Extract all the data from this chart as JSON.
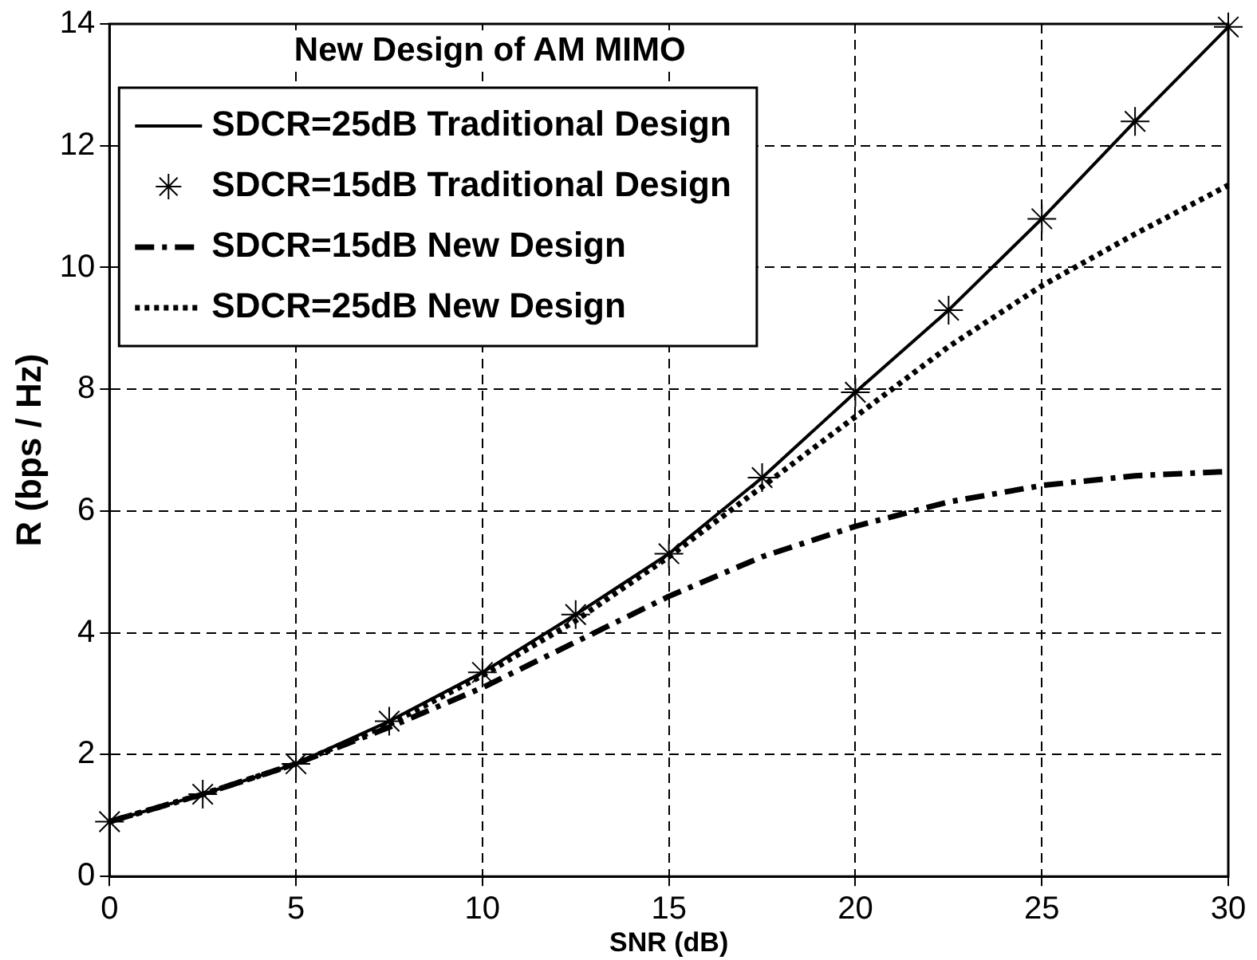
{
  "chart_data": {
    "type": "line",
    "title": "New Design of AM MIMO",
    "xlabel": "SNR (dB)",
    "ylabel": "R (bps / Hz)",
    "x": [
      0,
      2.5,
      5,
      7.5,
      10,
      12.5,
      15,
      17.5,
      20,
      22.5,
      25,
      27.5,
      30
    ],
    "series": [
      {
        "name": "SDCR=25dB Traditional Design",
        "color": "#000000",
        "line_style": "solid",
        "marker": "none",
        "values": [
          0.9,
          1.35,
          1.85,
          2.55,
          3.35,
          4.3,
          5.3,
          6.55,
          7.95,
          9.3,
          10.8,
          12.4,
          13.95
        ]
      },
      {
        "name": "SDCR=15dB Traditional Design",
        "type": "scatter",
        "color": "#000000",
        "marker": "cross",
        "values": [
          0.9,
          1.35,
          1.85,
          2.55,
          3.35,
          4.3,
          5.3,
          6.55,
          7.95,
          9.3,
          10.8,
          12.4,
          13.95
        ]
      },
      {
        "name": "SDCR=15dB New Design",
        "color": "#000000",
        "line_style": "dashed",
        "marker": "none",
        "values": [
          0.9,
          1.35,
          1.85,
          2.45,
          3.1,
          3.85,
          4.6,
          5.25,
          5.75,
          6.15,
          6.42,
          6.58,
          6.65
        ]
      },
      {
        "name": "SDCR=25dB New Design",
        "color": "#000000",
        "line_style": "dotted",
        "marker": "none",
        "values": [
          0.9,
          1.35,
          1.85,
          2.5,
          3.3,
          4.2,
          5.25,
          6.4,
          7.55,
          8.7,
          9.7,
          10.55,
          11.35
        ]
      }
    ],
    "xlim": [
      0,
      30
    ],
    "xticks": [
      0,
      5,
      10,
      15,
      20,
      25,
      30
    ],
    "ylim": [
      0,
      14
    ],
    "yticks": [
      0,
      2,
      4,
      6,
      8,
      10,
      12,
      14
    ],
    "grid": true,
    "legend": "top left"
  }
}
